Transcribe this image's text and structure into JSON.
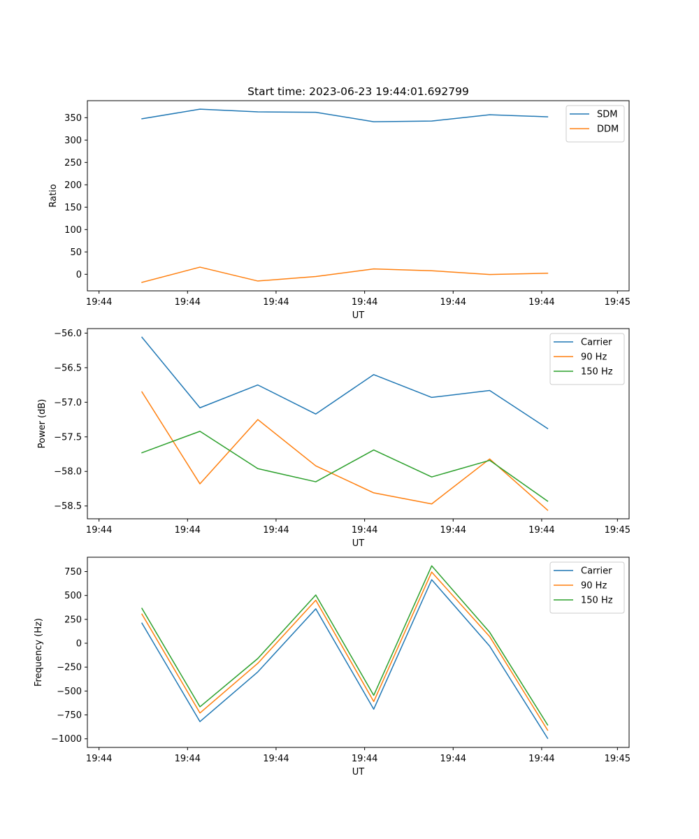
{
  "chart_data": [
    {
      "type": "line",
      "title": "Start time: 2023-06-23 19:44:01.692799",
      "xlabel": "UT",
      "ylabel": "Ratio",
      "x_tick_labels": [
        "19:44",
        "19:44",
        "19:44",
        "19:44",
        "19:44",
        "19:44",
        "19:45"
      ],
      "y_ticks": [
        0,
        50,
        100,
        150,
        200,
        250,
        300,
        350
      ],
      "ylim": [
        -37,
        388
      ],
      "legend_position": "top-right",
      "series": [
        {
          "name": "SDM",
          "color": "#1f77b4",
          "values": [
            347.5,
            369,
            363,
            362,
            341,
            342.5,
            356.5,
            352
          ]
        },
        {
          "name": "DDM",
          "color": "#ff7f0e",
          "values": [
            -18,
            16,
            -15,
            -5,
            12,
            8,
            -0.5,
            2.5
          ]
        }
      ]
    },
    {
      "type": "line",
      "title": "",
      "xlabel": "UT",
      "ylabel": "Power (dB)",
      "x_tick_labels": [
        "19:44",
        "19:44",
        "19:44",
        "19:44",
        "19:44",
        "19:44",
        "19:45"
      ],
      "y_ticks": [
        -56.0,
        -56.5,
        -57.0,
        -57.5,
        -58.0,
        -58.5
      ],
      "y_tick_labels": [
        "−56.0",
        "−56.5",
        "−57.0",
        "−57.5",
        "−58.0",
        "−58.5"
      ],
      "ylim": [
        -58.685,
        -55.935
      ],
      "legend_position": "top-right",
      "series": [
        {
          "name": "Carrier",
          "color": "#1f77b4",
          "values": [
            -56.06,
            -57.08,
            -56.75,
            -57.17,
            -56.6,
            -56.93,
            -56.83,
            -57.38
          ]
        },
        {
          "name": "90 Hz",
          "color": "#ff7f0e",
          "values": [
            -56.85,
            -58.18,
            -57.25,
            -57.92,
            -58.31,
            -58.47,
            -57.82,
            -58.56
          ]
        },
        {
          "name": "150 Hz",
          "color": "#2ca02c",
          "values": [
            -57.73,
            -57.42,
            -57.96,
            -58.15,
            -57.69,
            -58.08,
            -57.84,
            -58.43
          ]
        }
      ]
    },
    {
      "type": "line",
      "title": "",
      "xlabel": "UT",
      "ylabel": "Frequency (Hz)",
      "x_tick_labels": [
        "19:44",
        "19:44",
        "19:44",
        "19:44",
        "19:44",
        "19:44",
        "19:45"
      ],
      "y_ticks": [
        750,
        500,
        250,
        0,
        -250,
        -500,
        -750,
        -1000
      ],
      "y_tick_labels": [
        "750",
        "500",
        "250",
        "0",
        "−250",
        "−500",
        "−750",
        "−1000"
      ],
      "ylim": [
        -1090,
        900
      ],
      "legend_position": "top-right",
      "series": [
        {
          "name": "Carrier",
          "color": "#1f77b4",
          "values": [
            210,
            -820,
            -300,
            360,
            -690,
            665,
            -30,
            -995
          ]
        },
        {
          "name": "90 Hz",
          "color": "#ff7f0e",
          "values": [
            305,
            -730,
            -210,
            450,
            -610,
            745,
            70,
            -910
          ]
        },
        {
          "name": "150 Hz",
          "color": "#2ca02c",
          "values": [
            365,
            -665,
            -160,
            505,
            -545,
            810,
            115,
            -855
          ]
        }
      ]
    }
  ]
}
